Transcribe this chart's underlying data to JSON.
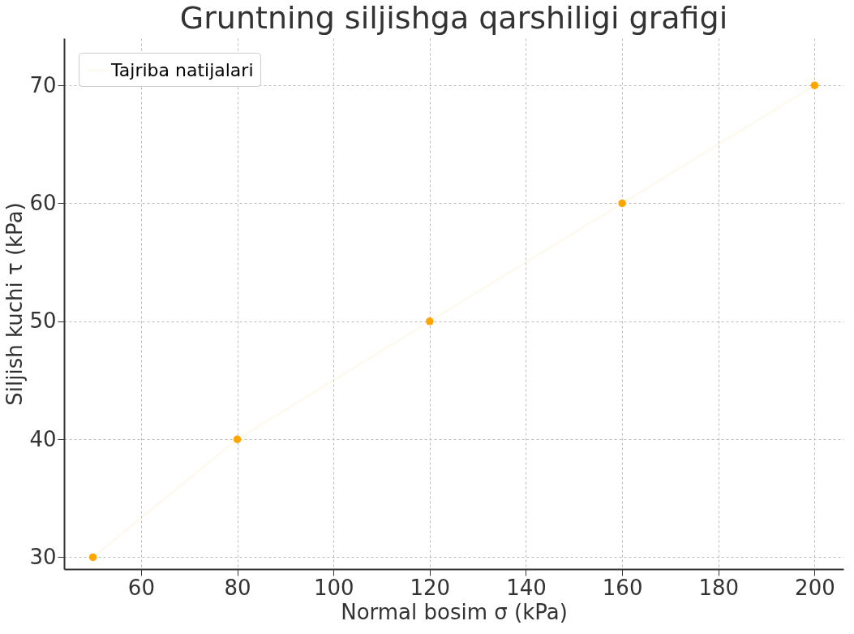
{
  "chart_data": {
    "type": "line",
    "title": "Gruntning siljishga qarshiligi grafigi",
    "xlabel": "Normal bosim σ (kPa)",
    "ylabel": "Siljish kuchi τ (kPa)",
    "x": [
      50,
      80,
      120,
      160,
      200
    ],
    "series": [
      {
        "name": "Tajriba natijalari",
        "color": "#ffa500",
        "values": [
          30,
          40,
          50,
          60,
          70
        ]
      }
    ],
    "xlim": [
      44,
      206
    ],
    "xticks": [
      60,
      80,
      100,
      120,
      140,
      160,
      180,
      200
    ],
    "ylim": [
      29,
      74
    ],
    "yticks": [
      30,
      40,
      50,
      60,
      70
    ],
    "grid": true,
    "legend": "top left",
    "marker": "circle",
    "line_style": "solid"
  }
}
